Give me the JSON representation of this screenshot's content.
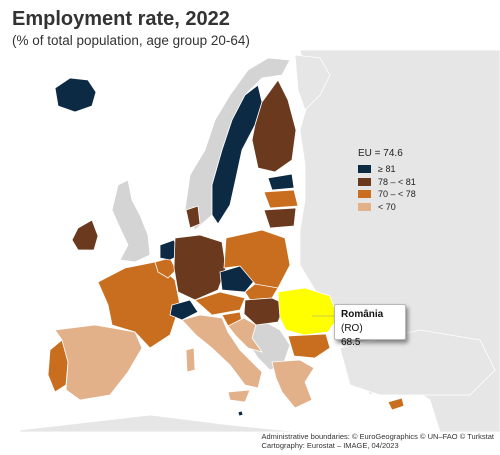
{
  "header": {
    "title": "Employment rate, 2022",
    "subtitle": "(% of total population, age group 20-64)"
  },
  "legend": {
    "title": "EU = 74.6",
    "classes": [
      {
        "label": "≥ 81",
        "color": "#0d2a45"
      },
      {
        "label": "78 – < 81",
        "color": "#6b3a1e"
      },
      {
        "label": "70 – < 78",
        "color": "#c96e1f"
      },
      {
        "label": "< 70",
        "color": "#e2b089"
      }
    ],
    "no_data_color": "#d4d4d4",
    "sea_color": "#ffffff",
    "non_eu_color": "#e6e6e6"
  },
  "tooltip": {
    "country": "România",
    "code": "(RO)",
    "value": "68.5",
    "highlight_color": "#ffff00"
  },
  "credits": {
    "line1": "Administrative boundaries: © EuroGeographics © UN–FAO © Turkstat",
    "line2": "Cartography: Eurostat – IMAGE, 04/2023"
  }
}
